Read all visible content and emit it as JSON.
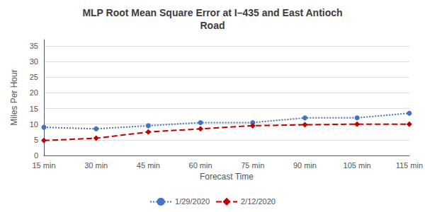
{
  "chart_data": {
    "type": "line",
    "title": "MLP Root Mean Square Error at I–435 and East Antioch\nRoad",
    "xlabel": "Forecast Time",
    "ylabel": "Miles Per Hour",
    "categories": [
      "15 min",
      "30 min",
      "45 min",
      "60 min",
      "75 min",
      "90 min",
      "105 min",
      "115 min"
    ],
    "series": [
      {
        "name": "1/29/2020",
        "color": "#4472C4",
        "marker": "circle",
        "line_style": "dotted",
        "values": [
          9.0,
          8.5,
          9.5,
          10.5,
          10.5,
          12.0,
          12.0,
          13.5
        ]
      },
      {
        "name": "2/12/2020",
        "color": "#C00000",
        "marker": "diamond",
        "line_style": "dashed",
        "values": [
          4.8,
          5.5,
          7.5,
          8.5,
          9.5,
          9.8,
          10.0,
          10.0
        ]
      }
    ],
    "ylim": [
      0,
      37
    ],
    "yticks": [
      0,
      5,
      10,
      15,
      20,
      25,
      30,
      35
    ],
    "grid": true,
    "legend": "bottom"
  }
}
